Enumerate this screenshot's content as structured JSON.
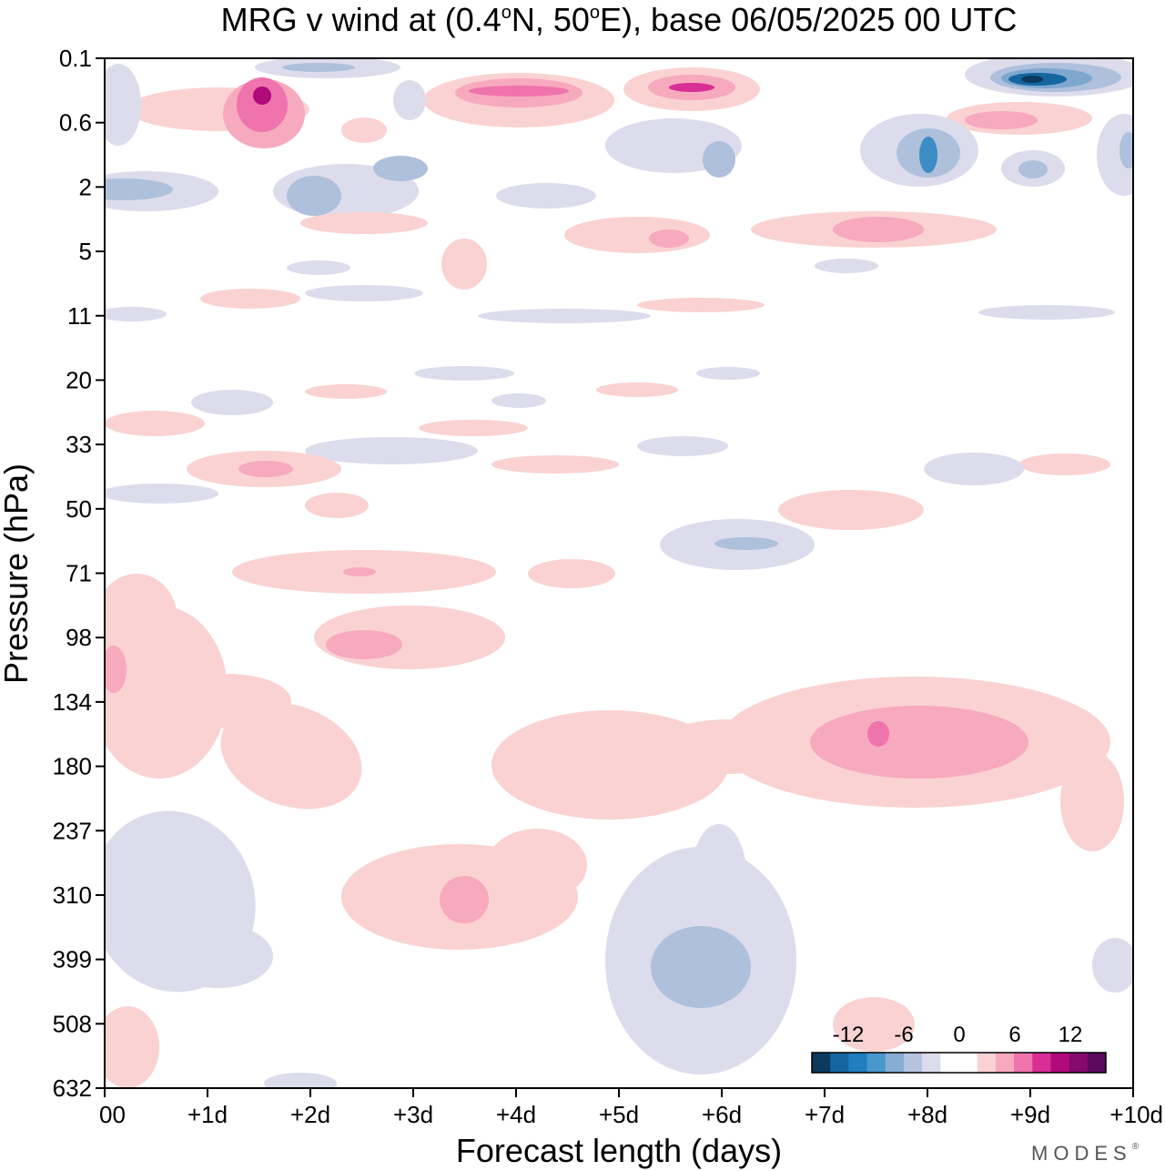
{
  "chart_data": {
    "type": "heatmap",
    "subtype": "filled-contour",
    "title": "MRG v wind at (0.4°N, 50°E),  base 06/05/2025  00 UTC",
    "title_parts": {
      "prefix": "MRG v wind at (0.4",
      "deg1": "o",
      "mid": "N, 50",
      "deg2": "o",
      "suffix": "E),  base 06/05/2025  00 UTC"
    },
    "xlabel": "Forecast length (days)",
    "ylabel": "Pressure (hPa)",
    "x_ticks": [
      "00",
      "+1d",
      "+2d",
      "+3d",
      "+4d",
      "+5d",
      "+6d",
      "+7d",
      "+8d",
      "+9d",
      "+10d"
    ],
    "xlim": [
      0,
      10
    ],
    "y_ticks": [
      "0.1",
      "0.6",
      "2",
      "5",
      "11",
      "20",
      "33",
      "50",
      "71",
      "98",
      "134",
      "180",
      "237",
      "310",
      "399",
      "508",
      "632"
    ],
    "y_scale": "pressure levels (top = 0.1 hPa, bottom = 632 hPa)",
    "colorbar": {
      "labels": [
        "-12",
        "-6",
        "0",
        "6",
        "12"
      ],
      "colors": [
        "#0b3a5e",
        "#1565a0",
        "#1f7fbf",
        "#4a97cc",
        "#86aed3",
        "#b6c3e0",
        "#dcdcec",
        "#ffffff",
        "#ffffff",
        "#fad2d2",
        "#f7a9be",
        "#ef73ad",
        "#d92e95",
        "#b10a7a",
        "#870a6e",
        "#5b0a5e"
      ],
      "placement": "bottom-right"
    },
    "palette": {
      "neg1": "#dcdcec",
      "neg2": "#aec0dc",
      "neg3": "#7ea7d0",
      "neg4": "#3b8dc4",
      "neg5": "#1466a0",
      "neg6": "#0b3a5e",
      "pos1": "#fad2d2",
      "pos2": "#f7a9be",
      "pos3": "#ef73ad",
      "pos4": "#d92e95",
      "pos5": "#b10a7a"
    },
    "grid": false
  },
  "branding": {
    "text": "MODES",
    "mark": "®"
  }
}
